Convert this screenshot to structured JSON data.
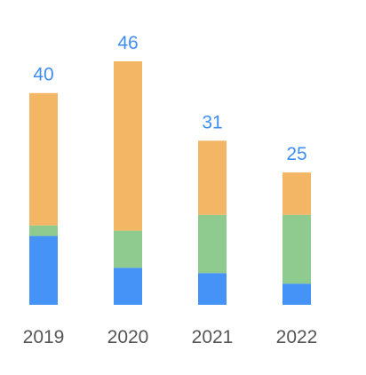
{
  "chart_data": {
    "type": "stacked-bar",
    "categories": [
      "2019",
      "2020",
      "2021",
      "2022"
    ],
    "series": [
      {
        "color": "#4593f6",
        "values": [
          13,
          7,
          6,
          4
        ]
      },
      {
        "color": "#8fcb8f",
        "values": [
          2,
          7,
          11,
          13
        ]
      },
      {
        "color": "#f3b665",
        "values": [
          25,
          32,
          14,
          8
        ]
      }
    ],
    "totals": [
      40,
      46,
      31,
      25
    ]
  }
}
